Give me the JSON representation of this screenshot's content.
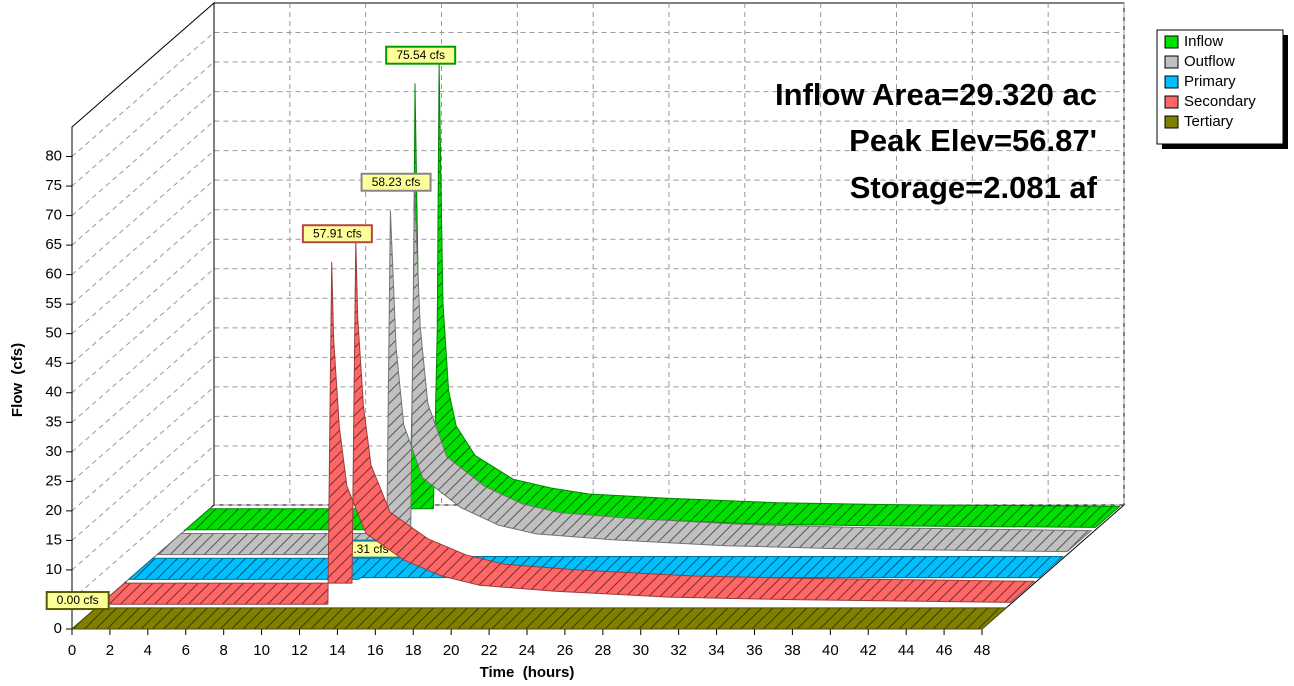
{
  "chart_data": {
    "type": "ribbon3d",
    "x_label": "Time  (hours)",
    "y_label": "Flow  (cfs)",
    "annotations": [
      "Inflow Area=29.320 ac",
      "Peak Elev=56.87'",
      "Storage=2.081 af"
    ],
    "x": [
      0,
      11.8,
      12.0,
      12.1,
      12.2,
      12.3,
      12.6,
      13,
      14,
      16,
      18,
      20,
      24,
      30,
      36,
      48
    ],
    "series": [
      {
        "name": "Inflow",
        "color": "#00e000",
        "values": [
          0,
          0,
          30,
          75.54,
          55,
          35,
          20,
          14,
          9,
          5,
          3.5,
          2.5,
          1.8,
          1,
          0.7,
          0.4
        ],
        "value_labels": [
          null,
          null,
          null,
          "75.54 cfs",
          null,
          null,
          null,
          null,
          null,
          null,
          null,
          null,
          null,
          null,
          null,
          null
        ]
      },
      {
        "name": "Outflow",
        "color": "#c0c0c0",
        "values": [
          0,
          0,
          0,
          0,
          30,
          58.23,
          35,
          22,
          13,
          8,
          5,
          3.5,
          2.5,
          1.5,
          1,
          0.5
        ],
        "value_labels": [
          null,
          null,
          null,
          null,
          null,
          "58.23 cfs",
          null,
          null,
          null,
          null,
          null,
          null,
          null,
          null,
          null,
          null
        ]
      },
      {
        "name": "Primary",
        "color": "#00bfff",
        "values": [
          0,
          0,
          0,
          0,
          0.2,
          0.31,
          0.31,
          0.31,
          0.3,
          0.3,
          0.3,
          0.3,
          0.3,
          0.3,
          0.3,
          0.3
        ],
        "value_labels": [
          null,
          null,
          null,
          null,
          null,
          "0.31 cfs",
          null,
          null,
          null,
          null,
          null,
          null,
          null,
          null,
          null,
          null
        ]
      },
      {
        "name": "Secondary",
        "color": "#ff6666",
        "values": [
          0,
          0,
          0,
          30,
          57.91,
          45,
          30,
          20,
          12,
          7.5,
          4.8,
          3.2,
          2.2,
          1.2,
          0.8,
          0.3
        ],
        "value_labels": [
          null,
          null,
          null,
          null,
          "57.91 cfs",
          null,
          null,
          null,
          null,
          null,
          null,
          null,
          null,
          null,
          null,
          null
        ]
      },
      {
        "name": "Tertiary",
        "color": "#808000",
        "values": [
          0,
          0,
          0,
          0,
          0,
          0,
          0,
          0,
          0,
          0,
          0,
          0,
          0,
          0,
          0,
          0
        ],
        "value_labels": [
          "0.00 cfs",
          null,
          null,
          null,
          null,
          null,
          null,
          null,
          null,
          null,
          null,
          null,
          null,
          null,
          null,
          null
        ]
      }
    ],
    "xlim": [
      0,
      48
    ],
    "xticks": [
      0,
      2,
      4,
      6,
      8,
      10,
      12,
      14,
      16,
      18,
      20,
      22,
      24,
      26,
      28,
      30,
      32,
      34,
      36,
      38,
      40,
      42,
      44,
      46,
      48
    ],
    "ylim": [
      0,
      85
    ],
    "yticks": [
      0,
      5,
      10,
      15,
      20,
      25,
      30,
      35,
      40,
      45,
      50,
      55,
      60,
      65,
      70,
      75,
      80
    ],
    "grid": true,
    "legend": "top-right"
  }
}
